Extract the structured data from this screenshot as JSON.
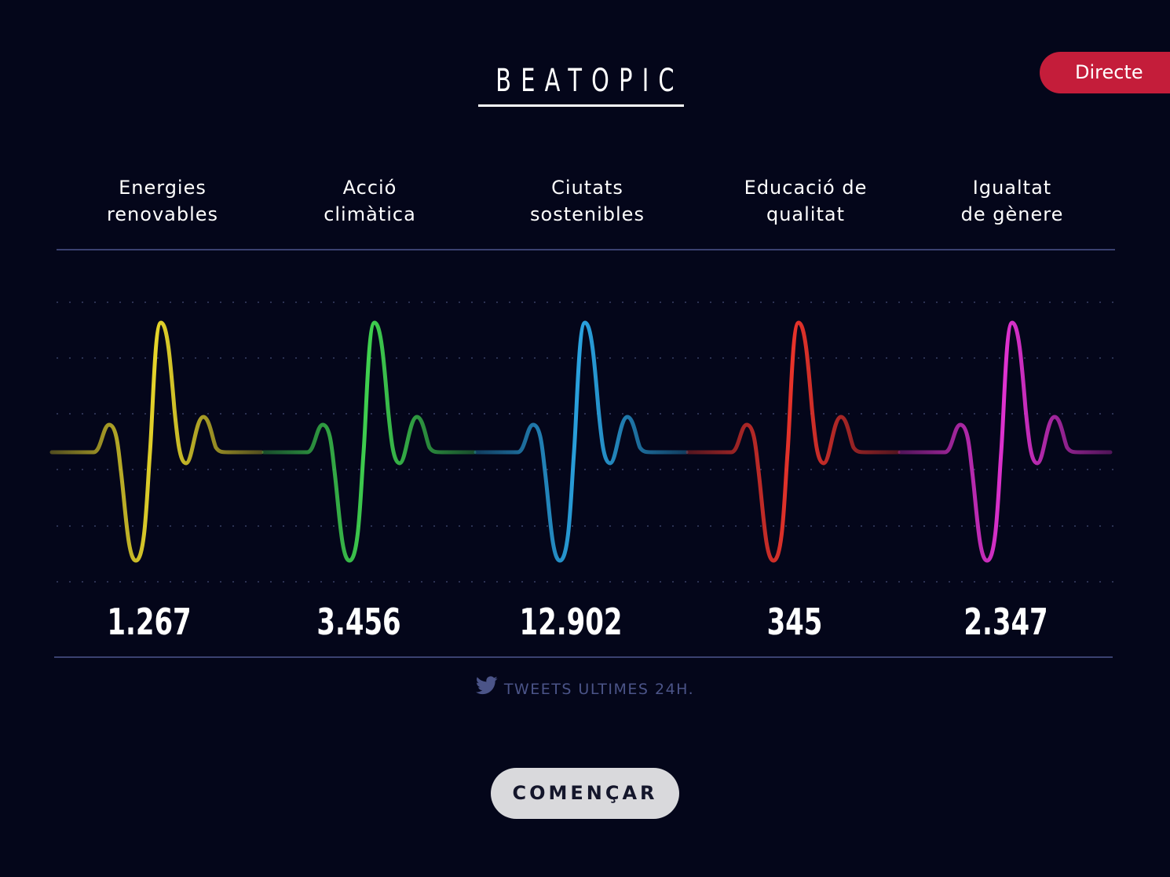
{
  "header": {
    "brand": "BEATOPIC",
    "live_label": "Directe"
  },
  "topics": [
    {
      "line1": "Energies",
      "line2": "renovables",
      "count": "1.267",
      "color": "#e6d52a"
    },
    {
      "line1": "Acció",
      "line2": "climàtica",
      "count": "3.456",
      "color": "#3fd14f"
    },
    {
      "line1": "Ciutats",
      "line2": "sostenibles",
      "count": "12.902",
      "color": "#2aa3e0"
    },
    {
      "line1": "Educació de",
      "line2": "qualitat",
      "count": "345",
      "color": "#e8332a"
    },
    {
      "line1": "Igualtat",
      "line2": "de gènere",
      "count": "2.347",
      "color": "#e032d0"
    }
  ],
  "footnote": {
    "icon": "twitter-bird-icon",
    "text": "TWEETS ULTIMES 24H."
  },
  "actions": {
    "start_label": "COMENÇAR"
  },
  "colors": {
    "background": "#04061a",
    "accent_live": "#c41d3a",
    "rule": "#3a4170",
    "footnote": "#4b5488"
  }
}
